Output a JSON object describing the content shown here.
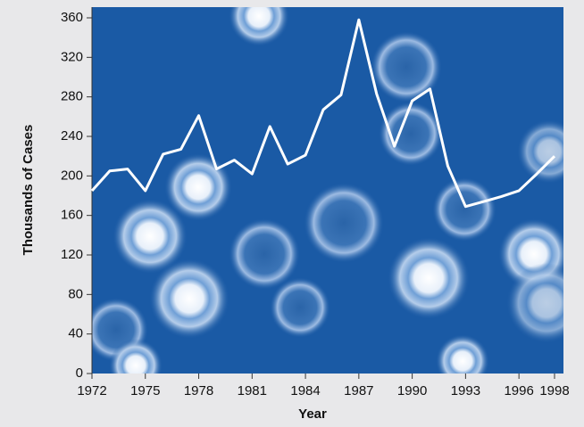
{
  "chart_data": {
    "type": "line",
    "x_label": "Year",
    "y_label": "Thousands of Cases",
    "x": [
      1972,
      1973,
      1974,
      1975,
      1976,
      1977,
      1978,
      1979,
      1980,
      1981,
      1982,
      1983,
      1984,
      1985,
      1986,
      1987,
      1988,
      1989,
      1990,
      1991,
      1992,
      1993,
      1994,
      1995,
      1996,
      1997,
      1998
    ],
    "series": [
      {
        "color": "#ffffff",
        "values": [
          185,
          205,
          207,
          185,
          222,
          227,
          261,
          207,
          216,
          202,
          250,
          212,
          221,
          267,
          282,
          358,
          283,
          230,
          276,
          288,
          210,
          169,
          174,
          179,
          185,
          202,
          220
        ]
      }
    ],
    "xlim": [
      1972,
      1998
    ],
    "xticks": [
      1972,
      1975,
      1978,
      1981,
      1984,
      1987,
      1990,
      1993,
      1996,
      1998
    ],
    "ylim": [
      0,
      360
    ],
    "yticks": [
      0,
      40,
      80,
      120,
      160,
      200,
      240,
      280,
      320,
      360
    ]
  }
}
